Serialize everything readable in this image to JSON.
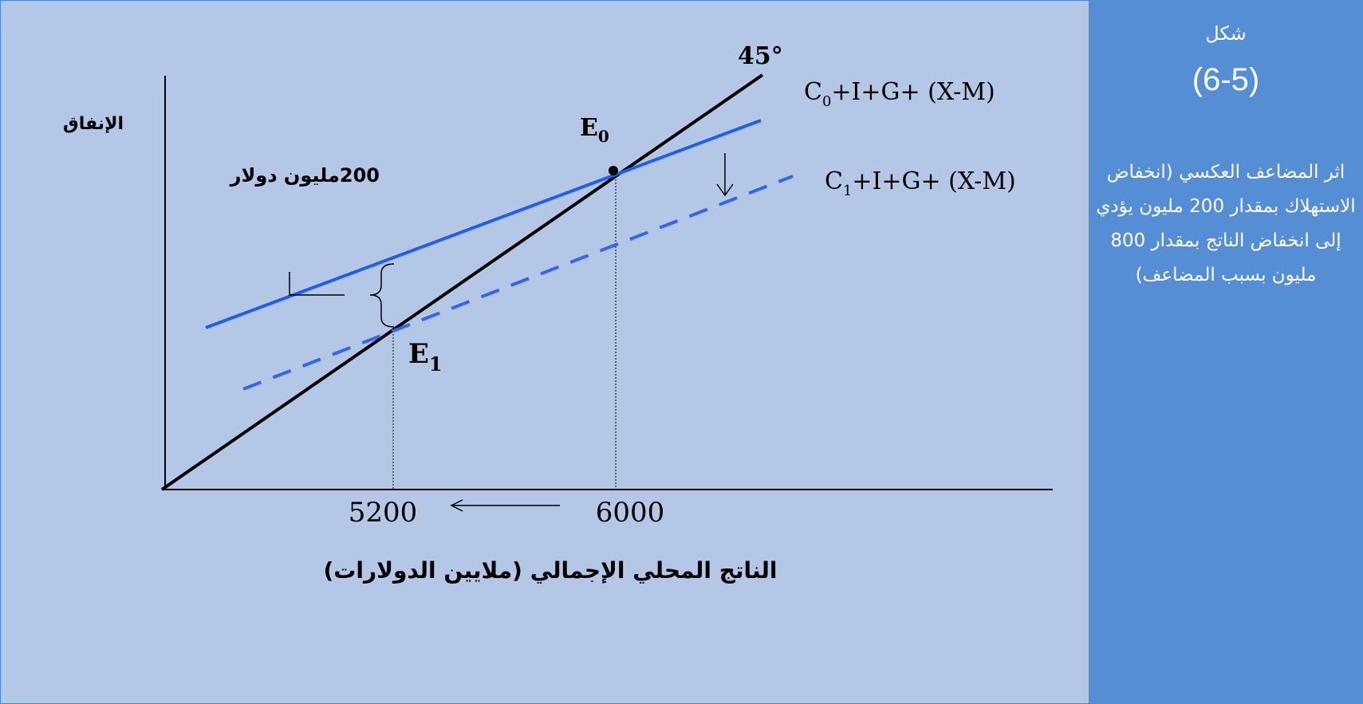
{
  "figure": {
    "label": "شكل",
    "number": "(6-5)",
    "description": "اثر المضاعف العكسي (انخفاض الاستهلاك بمقدار 200 مليون يؤدي إلى انخفاض الناتج بمقدار 800 مليون بسبب المضاعف)"
  },
  "diagram": {
    "y_axis_label": "الإنفاق",
    "x_axis_label": "الناتج المحلي الإجمالي (ملايين الدولارات)",
    "angle_label": "45°",
    "line_c0": {
      "prefix": "C",
      "sub": "0",
      "rest": "+I+G+ (X-M)",
      "color": "#1f5ef0"
    },
    "line_c1": {
      "prefix": "C",
      "sub": "1",
      "rest": "+I+G+ (X-M)",
      "color": "#3366ee",
      "style": "dashed"
    },
    "equilibrium_0": {
      "letter": "E",
      "sub": "0"
    },
    "equilibrium_1": {
      "letter": "E",
      "sub": "1"
    },
    "shift_label": "200مليون دولار",
    "x_tick_high": "6000",
    "x_tick_low": "5200"
  }
}
